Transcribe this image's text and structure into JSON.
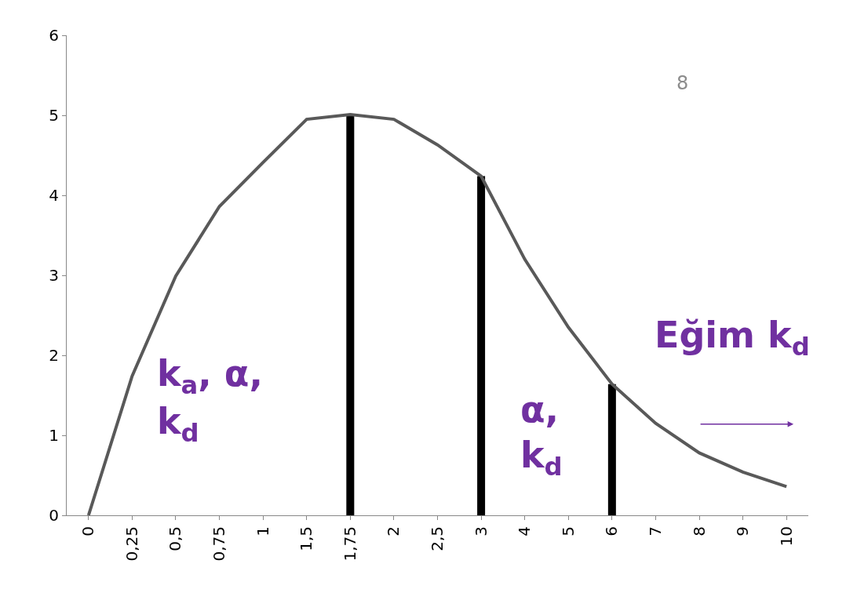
{
  "chart_data": {
    "type": "line",
    "categories": [
      "0",
      "0,25",
      "0,5",
      "0,75",
      "1",
      "1,5",
      "1,75",
      "2",
      "2,5",
      "3",
      "4",
      "5",
      "6",
      "7",
      "8",
      "9",
      "10"
    ],
    "series": [
      {
        "color": "#595959",
        "values": [
          0,
          1.74,
          2.99,
          3.86,
          4.41,
          4.95,
          5.01,
          4.95,
          4.63,
          4.24,
          3.2,
          2.35,
          1.64,
          1.15,
          0.78,
          0.54,
          0.36
        ]
      },
      {
        "type": "bar",
        "color": "#000000",
        "values": [
          null,
          null,
          null,
          null,
          null,
          null,
          5.01,
          null,
          null,
          4.24,
          null,
          null,
          1.64,
          null,
          null,
          null,
          null
        ]
      }
    ],
    "ylim": [
      0,
      6
    ],
    "yticks": [
      0,
      1,
      2,
      3,
      4,
      5,
      6
    ],
    "grid": false,
    "marker": "none",
    "line_style": "solid",
    "annotations": [
      "k$_{a}$, α,",
      "k$_{d}$",
      "α,",
      "k$_{d}$",
      "Eğim k$_{d}$",
      "8"
    ]
  }
}
